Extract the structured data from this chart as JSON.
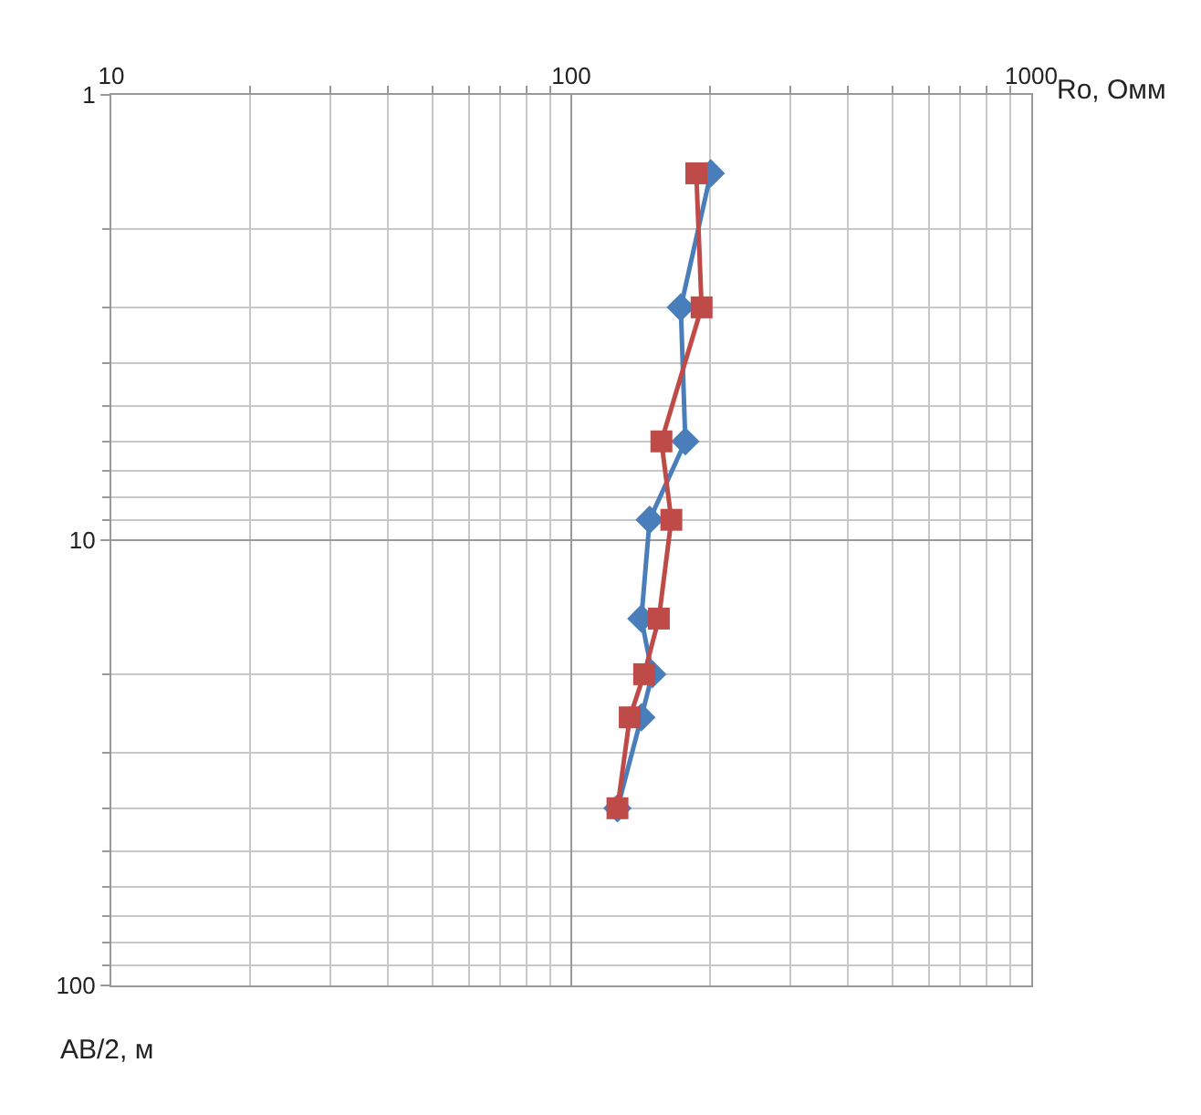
{
  "chart_data": {
    "type": "line",
    "xlabel": "Ro, Омм",
    "ylabel": "АВ/2, м",
    "log": "xy",
    "xlim": [
      10,
      1000
    ],
    "ylim": [
      100,
      1
    ],
    "xticks": [
      10,
      100,
      1000
    ],
    "yticks": [
      1,
      10,
      100
    ],
    "grid": true,
    "series": [
      {
        "color": "#4a7ebb",
        "marker": "diamond",
        "x": [
          201,
          173,
          177,
          148,
          142,
          150,
          142,
          126
        ],
        "values": [
          1.5,
          3,
          6,
          9,
          15,
          20,
          25,
          40
        ]
      },
      {
        "color": "#be4b48",
        "marker": "square",
        "x": [
          187,
          192,
          157,
          165,
          155,
          144,
          134,
          126
        ],
        "values": [
          1.5,
          3,
          6,
          9,
          15,
          20,
          25,
          40
        ]
      }
    ]
  }
}
